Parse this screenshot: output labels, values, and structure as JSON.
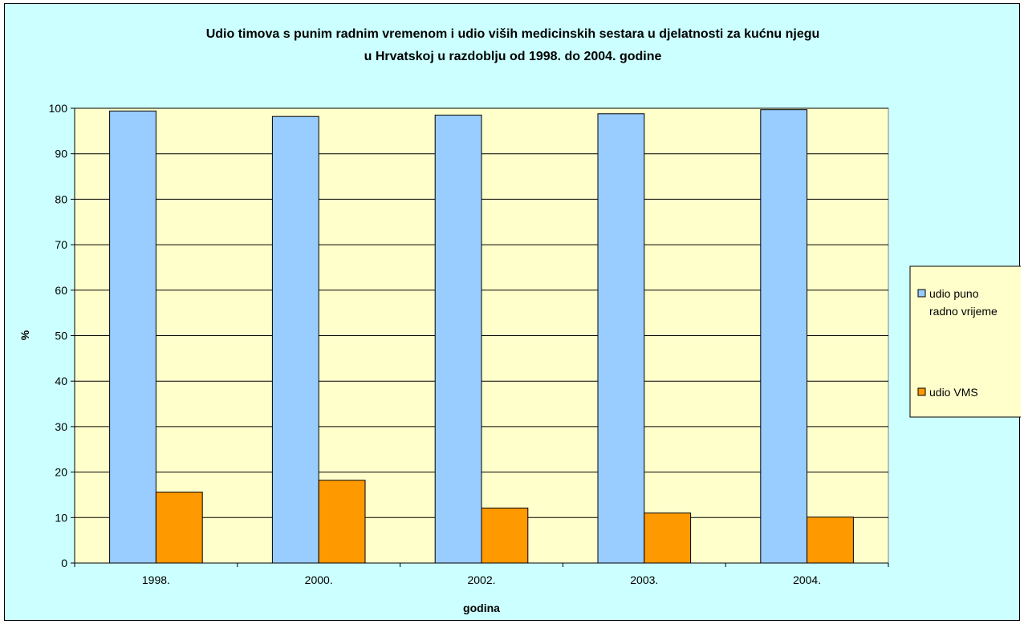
{
  "chart_data": {
    "type": "bar",
    "title_lines": [
      "Udio timova s punim radnim vremenom i udio viših medicinskih sestara u djelatnosti za kućnu njegu",
      "u Hrvatskoj u razdoblju od 1998. do 2004. godine"
    ],
    "categories": [
      "1998.",
      "2000.",
      "2002.",
      "2003.",
      "2004."
    ],
    "series": [
      {
        "name_lines": [
          "udio puno",
          "radno vrijeme"
        ],
        "color": "#99ccff",
        "values": [
          99.4,
          98.2,
          98.5,
          98.8,
          99.7
        ]
      },
      {
        "name_lines": [
          "udio VMS"
        ],
        "color": "#ff9900",
        "values": [
          15.6,
          18.2,
          12.1,
          11.0,
          10.1
        ]
      }
    ],
    "xlabel": "godina",
    "ylabel": "%",
    "ylim": [
      0,
      100
    ],
    "yticks": [
      "0",
      "10",
      "20",
      "30",
      "40",
      "50",
      "60",
      "70",
      "80",
      "90",
      "100"
    ],
    "plot_background": "#ffffcc",
    "chart_background": "#ccffff",
    "grid": true,
    "legend_position": "right"
  }
}
